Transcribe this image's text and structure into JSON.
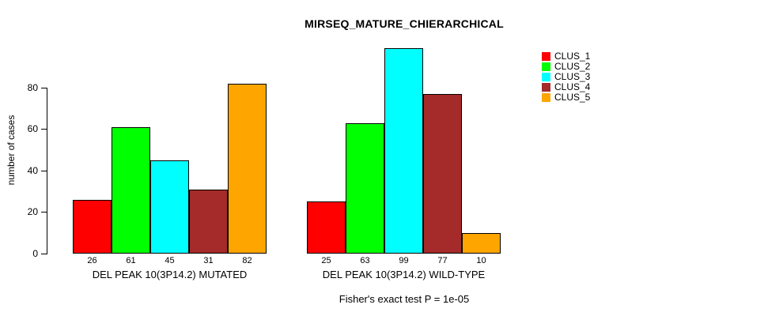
{
  "chart_data": {
    "type": "bar",
    "title": "MIRSEQ_MATURE_CHIERARCHICAL",
    "ylabel": "number of cases",
    "xlabel": "",
    "annotation": "Fisher's exact test P = 1e-05",
    "categories": [
      "DEL PEAK 10(3P14.2) MUTATED",
      "DEL PEAK 10(3P14.2) WILD-TYPE"
    ],
    "series": [
      {
        "name": "CLUS_1",
        "color": "#ff0000",
        "values": [
          26,
          25
        ]
      },
      {
        "name": "CLUS_2",
        "color": "#00ff00",
        "values": [
          61,
          63
        ]
      },
      {
        "name": "CLUS_3",
        "color": "#00ffff",
        "values": [
          45,
          99
        ]
      },
      {
        "name": "CLUS_4",
        "color": "#a52a2a",
        "values": [
          31,
          77
        ]
      },
      {
        "name": "CLUS_5",
        "color": "#ffa500",
        "values": [
          82,
          10
        ]
      }
    ],
    "yticks": [
      0,
      20,
      40,
      60,
      80
    ],
    "ylim": [
      0,
      99
    ],
    "grid": false,
    "show_value_labels": true,
    "legend_position": "right",
    "bar_border_color": "#000000",
    "background_color": "#ffffff"
  }
}
